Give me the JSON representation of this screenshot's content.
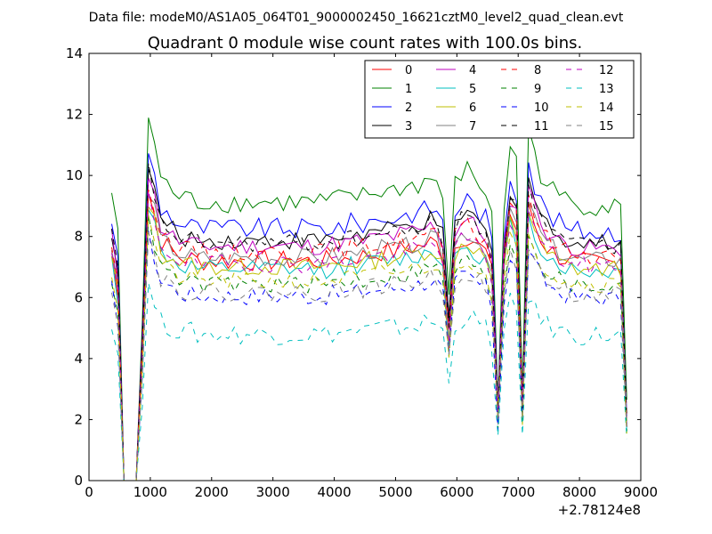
{
  "figure": {
    "suptitle": "Data file: modeM0/AS1A05_064T01_9000002450_16621cztM0_level2_quad_clean.evt"
  },
  "chart_data": {
    "type": "line",
    "title": "Quadrant 0 module wise count rates with 100.0s bins.",
    "xlabel": "",
    "ylabel": "",
    "x_offset_label": "+2.78124e8",
    "xlim": [
      0,
      9000
    ],
    "ylim": [
      0,
      14
    ],
    "x_ticks": [
      0,
      1000,
      2000,
      3000,
      4000,
      5000,
      6000,
      7000,
      8000,
      9000
    ],
    "y_ticks": [
      0,
      2,
      4,
      6,
      8,
      10,
      12,
      14
    ],
    "grid": false,
    "legend_position": "top-right",
    "legend_columns": 4,
    "x_values_note_offset": 278124000,
    "x": [
      370,
      470,
      570,
      670,
      770,
      870,
      970,
      1070,
      1170,
      1270,
      1370,
      1470,
      1570,
      1670,
      1770,
      1870,
      1970,
      2070,
      2170,
      2270,
      2370,
      2470,
      2570,
      2670,
      2770,
      2870,
      2970,
      3070,
      3170,
      3270,
      3370,
      3470,
      3570,
      3670,
      3770,
      3870,
      3970,
      4070,
      4170,
      4270,
      4370,
      4470,
      4570,
      4670,
      4770,
      4870,
      4970,
      5070,
      5170,
      5270,
      5370,
      5470,
      5570,
      5670,
      5770,
      5870,
      5970,
      6070,
      6170,
      6270,
      6370,
      6470,
      6570,
      6670,
      6770,
      6870,
      6970,
      7070,
      7170,
      7270,
      7370,
      7470,
      7570,
      7670,
      7770,
      7870,
      7970,
      8070,
      8170,
      8270,
      8370,
      8470,
      8570,
      8670,
      8770
    ],
    "shape": [
      1.0,
      0.84,
      0.0,
      0.0,
      0.0,
      0.55,
      1.26,
      1.16,
      1.04,
      1.02,
      1.0,
      0.98,
      0.97,
      0.97,
      0.96,
      0.96,
      0.96,
      0.96,
      0.96,
      0.96,
      0.96,
      0.96,
      0.96,
      0.96,
      0.96,
      0.96,
      0.96,
      0.96,
      0.96,
      0.96,
      0.96,
      0.96,
      0.96,
      0.96,
      0.96,
      0.96,
      0.97,
      0.97,
      0.97,
      0.98,
      0.98,
      0.98,
      0.99,
      0.99,
      1.0,
      1.0,
      1.0,
      1.01,
      1.01,
      1.02,
      1.02,
      1.03,
      1.04,
      1.03,
      0.98,
      0.62,
      1.02,
      1.06,
      1.07,
      1.05,
      1.02,
      1.0,
      0.9,
      0.28,
      0.95,
      1.16,
      1.1,
      0.31,
      1.22,
      1.12,
      1.06,
      1.02,
      1.0,
      0.98,
      0.97,
      0.96,
      0.95,
      0.95,
      0.95,
      0.95,
      0.95,
      0.95,
      0.95,
      0.95,
      0.25
    ],
    "series": [
      {
        "name": "0",
        "color": "#ff0000",
        "dash": "solid",
        "base": 7.5,
        "jitter": 0.35
      },
      {
        "name": "1",
        "color": "#008000",
        "dash": "solid",
        "base": 9.5,
        "jitter": 0.35
      },
      {
        "name": "2",
        "color": "#0000ff",
        "dash": "solid",
        "base": 8.6,
        "jitter": 0.35
      },
      {
        "name": "3",
        "color": "#000000",
        "dash": "solid",
        "base": 8.2,
        "jitter": 0.3
      },
      {
        "name": "4",
        "color": "#bf00bf",
        "dash": "solid",
        "base": 8.0,
        "jitter": 0.3
      },
      {
        "name": "5",
        "color": "#00bfbf",
        "dash": "solid",
        "base": 7.2,
        "jitter": 0.3
      },
      {
        "name": "6",
        "color": "#bfbf00",
        "dash": "solid",
        "base": 7.3,
        "jitter": 0.3
      },
      {
        "name": "7",
        "color": "#808080",
        "dash": "solid",
        "base": 7.6,
        "jitter": 0.3
      },
      {
        "name": "8",
        "color": "#ff0000",
        "dash": "dashed",
        "base": 7.8,
        "jitter": 0.3
      },
      {
        "name": "9",
        "color": "#008000",
        "dash": "dashed",
        "base": 6.7,
        "jitter": 0.3
      },
      {
        "name": "10",
        "color": "#0000ff",
        "dash": "dashed",
        "base": 6.3,
        "jitter": 0.3
      },
      {
        "name": "11",
        "color": "#000000",
        "dash": "dashed",
        "base": 8.1,
        "jitter": 0.3
      },
      {
        "name": "12",
        "color": "#bf00bf",
        "dash": "dashed",
        "base": 7.4,
        "jitter": 0.3
      },
      {
        "name": "13",
        "color": "#00bfbf",
        "dash": "dashed",
        "base": 5.0,
        "jitter": 0.35
      },
      {
        "name": "14",
        "color": "#bfbf00",
        "dash": "dashed",
        "base": 6.8,
        "jitter": 0.3
      },
      {
        "name": "15",
        "color": "#808080",
        "dash": "dashed",
        "base": 6.4,
        "jitter": 0.3
      }
    ]
  }
}
